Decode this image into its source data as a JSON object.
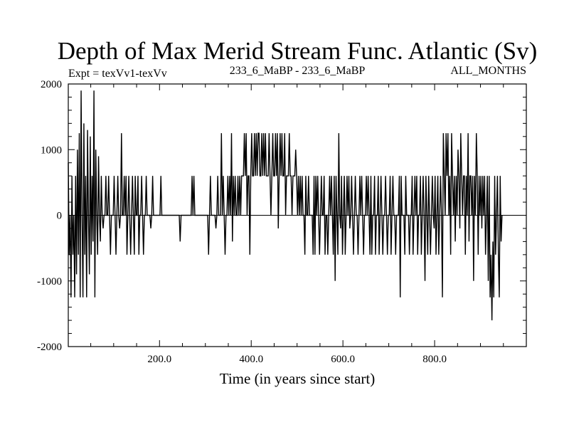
{
  "chart_data": {
    "type": "line",
    "title": "Depth of Max Merid Stream Func. Atlantic (Sv)",
    "subtitle_left": "Expt = texVv1-texVv",
    "subtitle_center": "233_6_MaBP - 233_6_MaBP",
    "subtitle_right": "ALL_MONTHS",
    "xlabel": "Time (in years since start)",
    "ylabel": "",
    "xlim": [
      1,
      1000
    ],
    "ylim": [
      -2000,
      2000
    ],
    "x_ticks": [
      200,
      400,
      600,
      800
    ],
    "x_tick_labels": [
      "200.0",
      "400.0",
      "600.0",
      "800.0"
    ],
    "y_ticks": [
      -2000,
      -1000,
      0,
      1000,
      2000
    ],
    "y_tick_labels": [
      "-2000",
      "-1000",
      "0",
      "1000",
      "2000"
    ],
    "grid": false,
    "series": [
      {
        "name": "Depth of Max Merid Stream Func.",
        "color": "#000000",
        "x_start": 1,
        "x_step": 2,
        "values": [
          800,
          -600,
          0,
          -1250,
          600,
          -600,
          0,
          -1250,
          600,
          -900,
          1000,
          -600,
          1250,
          -1250,
          1900,
          0,
          -1250,
          1400,
          -600,
          600,
          -1250,
          1300,
          0,
          -900,
          1200,
          -600,
          600,
          -400,
          1900,
          -1250,
          1000,
          0,
          -600,
          900,
          0,
          -400,
          600,
          0,
          -200,
          0,
          0,
          600,
          0,
          0,
          600,
          0,
          -600,
          0,
          0,
          0,
          600,
          0,
          -600,
          0,
          600,
          0,
          -200,
          0,
          1250,
          0,
          0,
          600,
          0,
          600,
          -600,
          0,
          600,
          0,
          -600,
          0,
          600,
          0,
          -600,
          600,
          0,
          0,
          600,
          -600,
          0,
          0,
          600,
          0,
          -600,
          0,
          0,
          600,
          0,
          0,
          0,
          0,
          -200,
          0,
          600,
          0,
          0,
          0,
          0,
          0,
          0,
          0,
          0,
          600,
          0,
          0,
          0,
          0,
          0,
          0,
          0,
          0,
          0,
          0,
          0,
          0,
          0,
          0,
          0,
          0,
          0,
          0,
          0,
          0,
          -400,
          0,
          0,
          0,
          0,
          0,
          0,
          0,
          0,
          0,
          0,
          0,
          0,
          600,
          0,
          600,
          0,
          0,
          0,
          0,
          0,
          0,
          0,
          0,
          0,
          0,
          0,
          0,
          0,
          0,
          0,
          -600,
          0,
          600,
          0,
          0,
          0,
          0,
          0,
          -200,
          0,
          600,
          0,
          0,
          0,
          1250,
          0,
          600,
          0,
          -600,
          0,
          0,
          600,
          0,
          600,
          0,
          1250,
          -400,
          600,
          0,
          600,
          0,
          0,
          600,
          0,
          600,
          0,
          600,
          600,
          600,
          1250,
          600,
          1250,
          0,
          600,
          600,
          -600,
          600,
          1250,
          600,
          600,
          1250,
          600,
          1250,
          600,
          1250,
          1250,
          600,
          600,
          1250,
          600,
          1250,
          600,
          1250,
          600,
          600,
          600,
          1250,
          600,
          0,
          600,
          1250,
          600,
          600,
          1250,
          600,
          1250,
          -200,
          600,
          1250,
          600,
          1250,
          600,
          600,
          1250,
          0,
          600,
          600,
          600,
          1250,
          600,
          600,
          0,
          600,
          600,
          600,
          1000,
          600,
          0,
          600,
          0,
          600,
          0,
          600,
          0,
          0,
          -600,
          600,
          0,
          0,
          600,
          0,
          0,
          0,
          0,
          -600,
          600,
          -600,
          600,
          0,
          600,
          0,
          -600,
          0,
          600,
          0,
          0,
          600,
          -600,
          0,
          0,
          -600,
          0,
          600,
          0,
          600,
          0,
          -600,
          600,
          -1000,
          600,
          0,
          -600,
          1250,
          0,
          -200,
          600,
          -600,
          0,
          600,
          -600,
          0,
          600,
          0,
          600,
          -200,
          0,
          600,
          0,
          -600,
          0,
          600,
          0,
          0,
          -600,
          0,
          600,
          0,
          600,
          0,
          -600,
          0,
          0,
          600,
          0,
          600,
          0,
          -600,
          600,
          -600,
          0,
          0,
          600,
          -600,
          0,
          0,
          600,
          -600,
          0,
          600,
          0,
          -600,
          0,
          0,
          600,
          0,
          -600,
          0,
          0,
          600,
          -600,
          0,
          600,
          0,
          0,
          -600,
          0,
          0,
          0,
          600,
          -1250,
          600,
          0,
          0,
          0,
          -600,
          600,
          0,
          0,
          0,
          -600,
          0,
          0,
          600,
          -600,
          0,
          600,
          0,
          600,
          -600,
          0,
          0,
          600,
          -600,
          0,
          600,
          0,
          -1000,
          600,
          0,
          -600,
          600,
          0,
          -600,
          0,
          600,
          0,
          -200,
          600,
          -600,
          0,
          600,
          -600,
          0,
          600,
          0,
          -1250,
          1250,
          600,
          0,
          1250,
          600,
          1250,
          0,
          600,
          -600,
          1250,
          600,
          0,
          600,
          -400,
          600,
          0,
          1000,
          600,
          -200,
          1250,
          600,
          0,
          600,
          600,
          -600,
          600,
          0,
          1250,
          -400,
          600,
          600,
          0,
          600,
          -1000,
          600,
          0,
          1250,
          600,
          -600,
          600,
          0,
          600,
          -200,
          600,
          0,
          600,
          -600,
          0,
          600,
          -1000,
          600,
          -1250,
          -600,
          -1600,
          -400,
          -1250,
          600,
          -600,
          0,
          600,
          -600,
          -1250,
          600,
          -400,
          0
        ]
      }
    ]
  }
}
